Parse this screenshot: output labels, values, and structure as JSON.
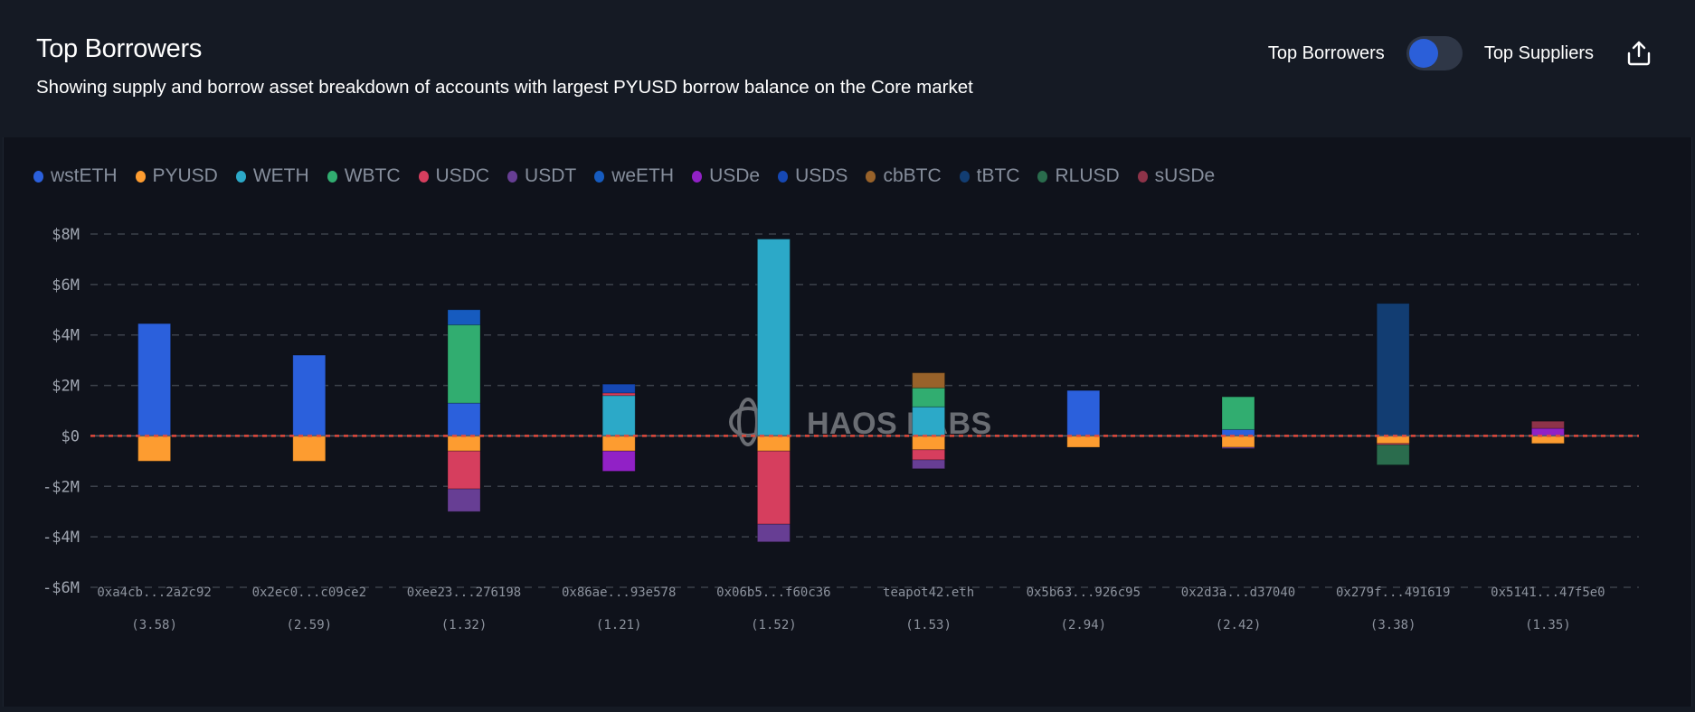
{
  "header": {
    "title": "Top Borrowers",
    "subtitle": "Showing supply and borrow asset breakdown of accounts with largest PYUSD borrow balance on the Core market",
    "toggle_left_label": "Top Borrowers",
    "toggle_right_label": "Top Suppliers",
    "toggle_state": "Top Borrowers",
    "export_icon": "share-upload-icon"
  },
  "watermark": {
    "text": "HAOS LABS",
    "logo_icon": "chaos-labs-logo-icon"
  },
  "chart_data": {
    "type": "bar",
    "stacked": true,
    "title": "Top Borrowers",
    "xlabel": "",
    "ylabel": "",
    "ylim": [
      -6000000,
      8000000
    ],
    "yticks": [
      8000000,
      6000000,
      4000000,
      2000000,
      0,
      -2000000,
      -4000000,
      -6000000
    ],
    "ytick_labels": [
      "$8M",
      "$6M",
      "$4M",
      "$2M",
      "$0",
      "-$2M",
      "-$4M",
      "-$6M"
    ],
    "grid": true,
    "zero_line": "red dashed",
    "legend_position": "top-left",
    "categories": [
      "0xa4cb...2a2c92",
      "0x2ec0...c09ce2",
      "0xee23...276198",
      "0x86ae...93e578",
      "0x06b5...f60c36",
      "teapot42.eth",
      "0x5b63...926c95",
      "0x2d3a...d37040",
      "0x279f...491619",
      "0x5141...47f5e0"
    ],
    "category_sublabels": [
      "(3.58)",
      "(2.59)",
      "(1.32)",
      "(1.21)",
      "(1.52)",
      "(1.53)",
      "(2.94)",
      "(2.42)",
      "(3.38)",
      "(1.35)"
    ],
    "series": [
      {
        "name": "wstETH",
        "color": "#2b60dc",
        "values": [
          4.45,
          3.2,
          1.3,
          0,
          0,
          0,
          1.8,
          0.25,
          0,
          0
        ],
        "borrow": [
          0,
          0,
          0,
          0,
          0,
          0,
          0,
          0,
          0,
          0
        ]
      },
      {
        "name": "PYUSD",
        "color": "#fd9c30",
        "values": [
          0,
          0,
          0,
          0,
          0,
          0,
          0,
          0,
          0,
          0
        ],
        "borrow": [
          -1.0,
          -1.0,
          -0.6,
          -0.6,
          -0.6,
          -0.55,
          -0.45,
          -0.45,
          -0.3,
          -0.3
        ]
      },
      {
        "name": "WETH",
        "color": "#2ca9c8",
        "values": [
          0,
          0,
          0,
          1.6,
          7.8,
          1.15,
          0,
          0,
          0,
          0
        ],
        "borrow": [
          0,
          0,
          0,
          0,
          0,
          0,
          0,
          0,
          0,
          0
        ]
      },
      {
        "name": "WBTC",
        "color": "#31ad70",
        "values": [
          0,
          0,
          3.1,
          0,
          0,
          0.75,
          0,
          1.3,
          0,
          0
        ],
        "borrow": [
          0,
          0,
          0,
          0,
          0,
          0,
          0,
          0,
          0,
          0
        ]
      },
      {
        "name": "USDC",
        "color": "#d63e5e",
        "values": [
          0,
          0,
          0,
          0.1,
          0,
          0,
          0,
          0,
          0,
          0
        ],
        "borrow": [
          0,
          0,
          -1.5,
          0,
          -2.9,
          -0.4,
          0,
          0,
          -0.05,
          0
        ]
      },
      {
        "name": "USDT",
        "color": "#673e94",
        "values": [
          0,
          0,
          0,
          0,
          0,
          0,
          0,
          0,
          0,
          0
        ],
        "borrow": [
          0,
          0,
          -0.9,
          0,
          -0.7,
          -0.35,
          0,
          -0.05,
          0,
          0
        ]
      },
      {
        "name": "weETH",
        "color": "#165bbf",
        "values": [
          0,
          0,
          0.6,
          0,
          0,
          0,
          0,
          0,
          0,
          0
        ],
        "borrow": [
          0,
          0,
          0,
          0,
          0,
          0,
          0,
          0,
          0,
          0
        ]
      },
      {
        "name": "USDe",
        "color": "#9121c6",
        "values": [
          0,
          0,
          0,
          0,
          0,
          0,
          0,
          0,
          0,
          0.3
        ],
        "borrow": [
          0,
          0,
          0,
          -0.8,
          0,
          0,
          0,
          0,
          0,
          0
        ]
      },
      {
        "name": "USDS",
        "color": "#1648b4",
        "values": [
          0,
          0,
          0,
          0.35,
          0,
          0,
          0,
          0,
          0,
          0
        ],
        "borrow": [
          0,
          0,
          0,
          0,
          0,
          0,
          0,
          0,
          0,
          0
        ]
      },
      {
        "name": "cbBTC",
        "color": "#98622a",
        "values": [
          0,
          0,
          0,
          0,
          0,
          0.6,
          0,
          0,
          0,
          0
        ],
        "borrow": [
          0,
          0,
          0,
          0,
          0,
          0,
          0,
          0,
          0,
          0
        ]
      },
      {
        "name": "tBTC",
        "color": "#123d72",
        "values": [
          0,
          0,
          0,
          0,
          0,
          0,
          0,
          0,
          5.25,
          0
        ],
        "borrow": [
          0,
          0,
          0,
          0,
          0,
          0,
          0,
          0,
          0,
          0
        ]
      },
      {
        "name": "RLUSD",
        "color": "#2a6c4d",
        "values": [
          0,
          0,
          0,
          0,
          0,
          0,
          0,
          0,
          0,
          0
        ],
        "borrow": [
          0,
          0,
          0,
          0,
          0,
          0,
          0,
          0,
          -0.8,
          0
        ]
      },
      {
        "name": "sUSDe",
        "color": "#8e3349",
        "values": [
          0,
          0,
          0,
          0,
          0,
          0,
          0,
          0,
          0,
          0.28
        ],
        "borrow": [
          0,
          0,
          0,
          0,
          0,
          0,
          0,
          0,
          0,
          0
        ]
      }
    ],
    "units": "values in $M; positive = supply, negative = borrow"
  }
}
